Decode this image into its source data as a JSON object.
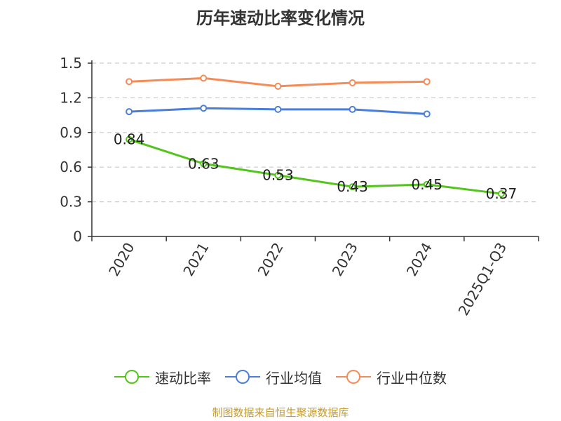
{
  "footer": {
    "source": "制图数据来自恒生聚源数据库"
  },
  "chart_data": {
    "type": "line",
    "title": "历年速动比率变化情况",
    "xlabel": "",
    "ylabel": "",
    "categories": [
      "2020",
      "2021",
      "2022",
      "2023",
      "2024",
      "2025Q1-Q3"
    ],
    "ylim": [
      0,
      1.5
    ],
    "yticks": [
      "0",
      "0.3",
      "0.6",
      "0.9",
      "1.2",
      "1.5"
    ],
    "grid": true,
    "legend_position": "bottom",
    "series": [
      {
        "name": "速动比率",
        "color": "#52c41a",
        "values": [
          0.84,
          0.63,
          0.53,
          0.43,
          0.45,
          0.37
        ],
        "labels": [
          "0.84",
          "0.63",
          "0.53",
          "0.43",
          "0.45",
          "0.37"
        ],
        "line_width": 3
      },
      {
        "name": "行业均值",
        "color": "#4a7fd9",
        "values": [
          1.08,
          1.11,
          1.1,
          1.1,
          1.06,
          null
        ],
        "line_width": 3
      },
      {
        "name": "行业中位数",
        "color": "#f58c57",
        "values": [
          1.34,
          1.37,
          1.3,
          1.33,
          1.34,
          null
        ],
        "line_width": 3
      }
    ]
  }
}
